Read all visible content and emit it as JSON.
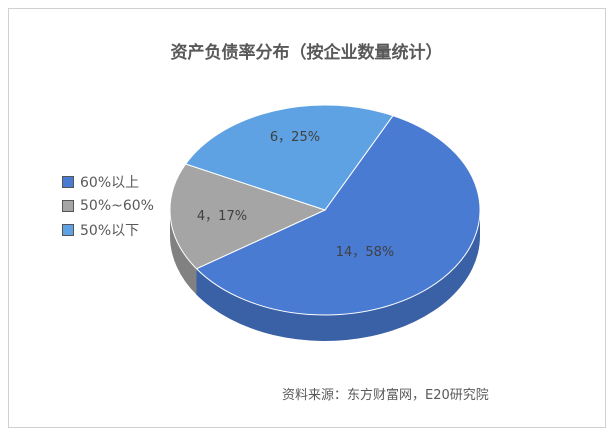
{
  "chart_data": {
    "type": "pie",
    "title": "资产负债率分布（按企业数量统计）",
    "categories": [
      "60%以上",
      "50%~60%",
      "50%以下"
    ],
    "values": [
      14,
      4,
      6
    ],
    "percents": [
      "58%",
      "17%",
      "25%"
    ],
    "data_labels": [
      "14，58%",
      "4，17%",
      "6，25%"
    ],
    "colors": [
      "#4a7bd3",
      "#a5a5a5",
      "#5fa2e3"
    ],
    "legend_position": "left",
    "style": "3d"
  },
  "source": "资料来源：东方财富网，E20研究院"
}
